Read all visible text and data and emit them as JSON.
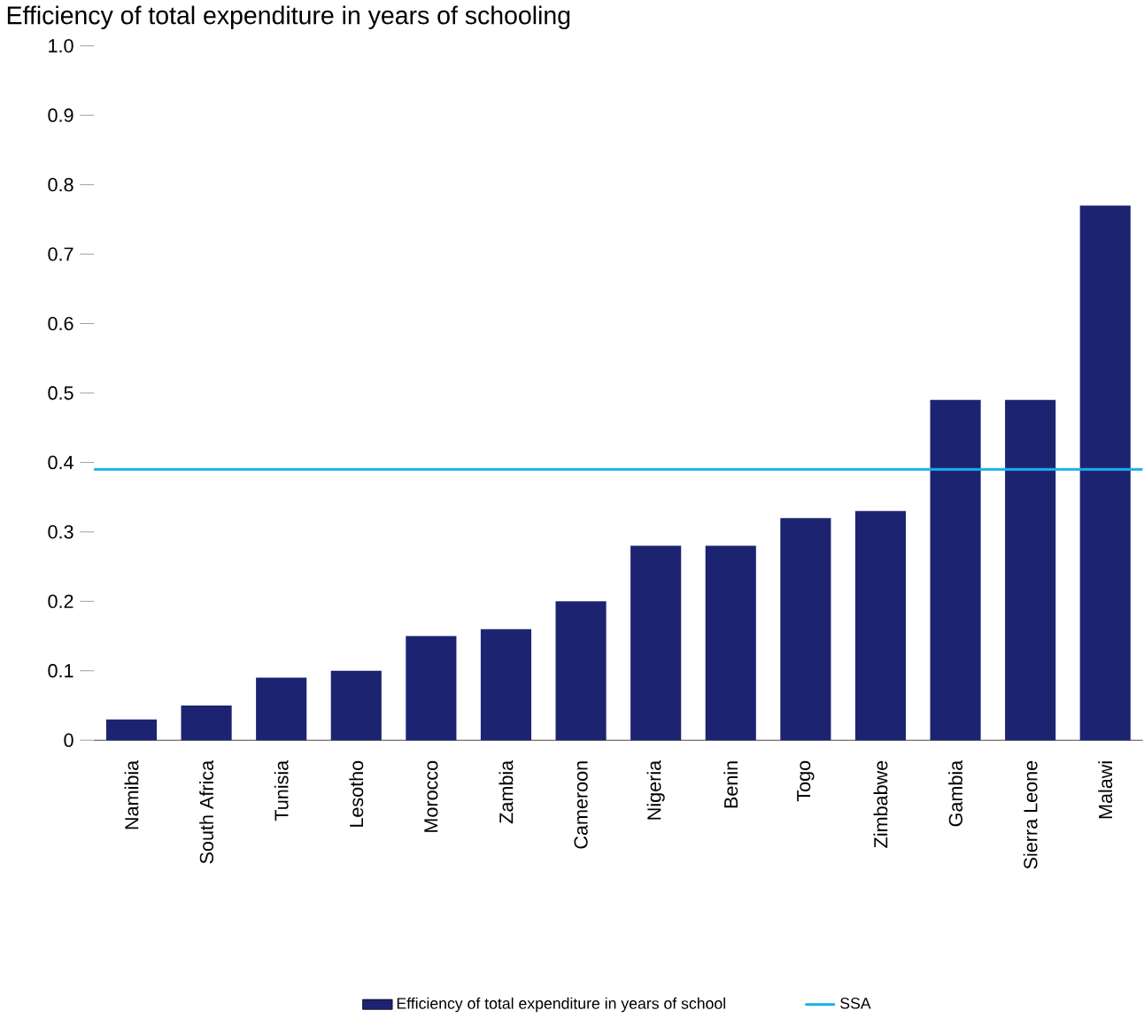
{
  "chart_data": {
    "type": "bar",
    "title": "Efficiency of total expenditure in years of schooling",
    "categories": [
      "Namibia",
      "South Africa",
      "Tunisia",
      "Lesotho",
      "Morocco",
      "Zambia",
      "Cameroon",
      "Nigeria",
      "Benin",
      "Togo",
      "Zimbabwe",
      "Gambia",
      "Sierra Leone",
      "Malawi"
    ],
    "series": [
      {
        "name": "Efficiency of total expenditure in years of school",
        "color": "#1c2471",
        "values": [
          0.03,
          0.05,
          0.09,
          0.1,
          0.15,
          0.16,
          0.2,
          0.28,
          0.28,
          0.32,
          0.33,
          0.49,
          0.49,
          0.77
        ]
      }
    ],
    "ylim": [
      0,
      1.0
    ],
    "yticks": [
      {
        "value": 0,
        "label": "0"
      },
      {
        "value": 0.1,
        "label": "0.1"
      },
      {
        "value": 0.2,
        "label": "0.2"
      },
      {
        "value": 0.3,
        "label": "0.3"
      },
      {
        "value": 0.4,
        "label": "0.4"
      },
      {
        "value": 0.5,
        "label": "0.5"
      },
      {
        "value": 0.6,
        "label": "0.6"
      },
      {
        "value": 0.7,
        "label": "0.7"
      },
      {
        "value": 0.8,
        "label": "0.8"
      },
      {
        "value": 0.9,
        "label": "0.9"
      },
      {
        "value": 1.0,
        "label": "1.0"
      }
    ],
    "ref_lines": [
      {
        "axis": "y",
        "value": 0.39,
        "label": "SSA",
        "color": "#1ab0e8"
      }
    ],
    "legend": "bottom",
    "grid": false
  }
}
